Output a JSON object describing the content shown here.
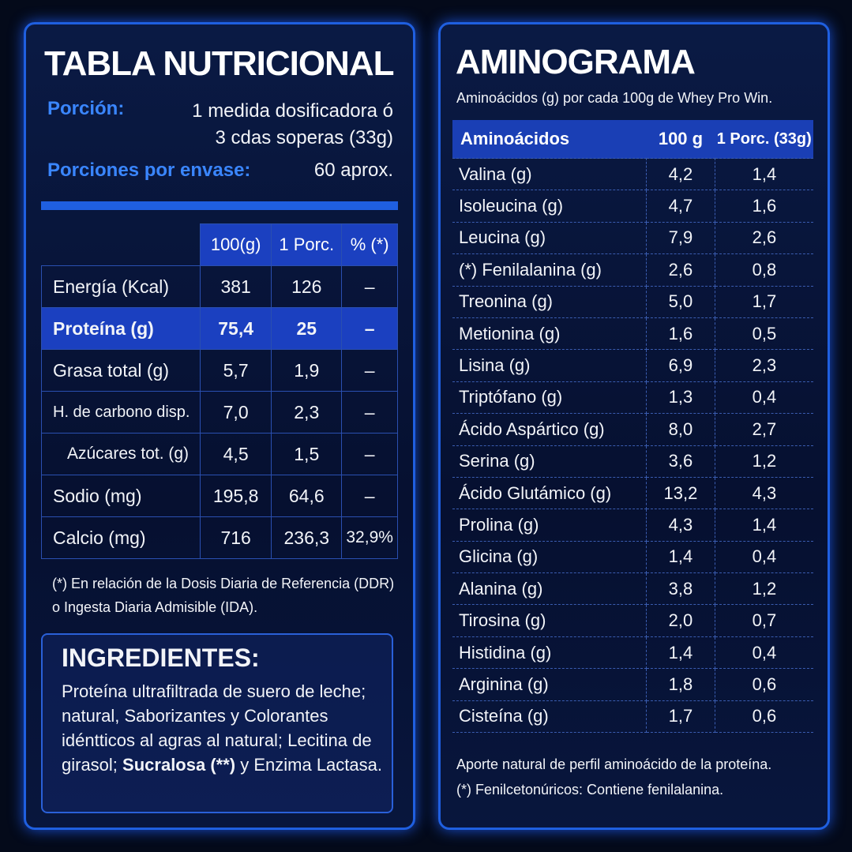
{
  "nutrition": {
    "title": "TABLA NUTRICIONAL",
    "serving_label": "Porción:",
    "serving_value": "1 medida dosificadora ó 3 cdas soperas (33g)",
    "servings_label": "Porciones por envase:",
    "servings_value": "60 aprox.",
    "columns": [
      "100(g)",
      "1 Porc.",
      "% (*)"
    ],
    "rows": [
      [
        "Energía (Kcal)",
        "381",
        "126",
        "–"
      ],
      [
        "Proteína (g)",
        "75,4",
        "25",
        "–"
      ],
      [
        "Grasa total (g)",
        "5,7",
        "1,9",
        "–"
      ],
      [
        "H. de carbono disp.",
        "7,0",
        "2,3",
        "–"
      ],
      [
        "Azúcares tot. (g)",
        "4,5",
        "1,5",
        "–"
      ],
      [
        "Sodio (mg)",
        "195,8",
        "64,6",
        "–"
      ],
      [
        "Calcio (mg)",
        "716",
        "236,3",
        "32,9%"
      ]
    ],
    "footnote": "(*) En relación de la Dosis Diaria de Referencia (DDR) o Ingesta Diaria Admisible (IDA)."
  },
  "ingredients": {
    "title": "INGREDIENTES:",
    "text_before": "Proteína ultrafiltrada de suero de leche; natural, Saborizantes y Colorantes idéntticos al agras al natural; Lecitina de girasol;",
    "text_bold": "Sucralosa (**)",
    "text_after": "y Enzima Lactasa."
  },
  "aminogram": {
    "title": "AMINOGRAMA",
    "subtitle": "Aminoácidos (g) por cada 100g de Whey Pro Win.",
    "columns": [
      "Aminoácidos",
      "100 g",
      "1 Porc. (33g)"
    ],
    "rows": [
      [
        "Valina (g)",
        "4,2",
        "1,4"
      ],
      [
        "Isoleucina (g)",
        "4,7",
        "1,6"
      ],
      [
        "Leucina (g)",
        "7,9",
        "2,6"
      ],
      [
        "(*) Fenilalanina (g)",
        "2,6",
        "0,8"
      ],
      [
        "Treonina (g)",
        "5,0",
        "1,7"
      ],
      [
        "Metionina (g)",
        "1,6",
        "0,5"
      ],
      [
        "Lisina (g)",
        "6,9",
        "2,3"
      ],
      [
        "Triptófano (g)",
        "1,3",
        "0,4"
      ],
      [
        "Ácido Aspártico (g)",
        "8,0",
        "2,7"
      ],
      [
        "Serina (g)",
        "3,6",
        "1,2"
      ],
      [
        "Ácido Glutámico (g)",
        "13,2",
        "4,3"
      ],
      [
        "Prolina (g)",
        "4,3",
        "1,4"
      ],
      [
        "Glicina (g)",
        "1,4",
        "0,4"
      ],
      [
        "Alanina (g)",
        "3,8",
        "1,2"
      ],
      [
        "Tirosina (g)",
        "2,0",
        "0,7"
      ],
      [
        "Histidina (g)",
        "1,4",
        "0,4"
      ],
      [
        "Arginina (g)",
        "1,8",
        "0,6"
      ],
      [
        "Cisteína (g)",
        "1,7",
        "0,6"
      ]
    ],
    "notes": [
      "Aporte natural de perfil aminoácido de la proteína.",
      "(*) Fenilcetonúricos: Contiene fenilalanina."
    ]
  }
}
